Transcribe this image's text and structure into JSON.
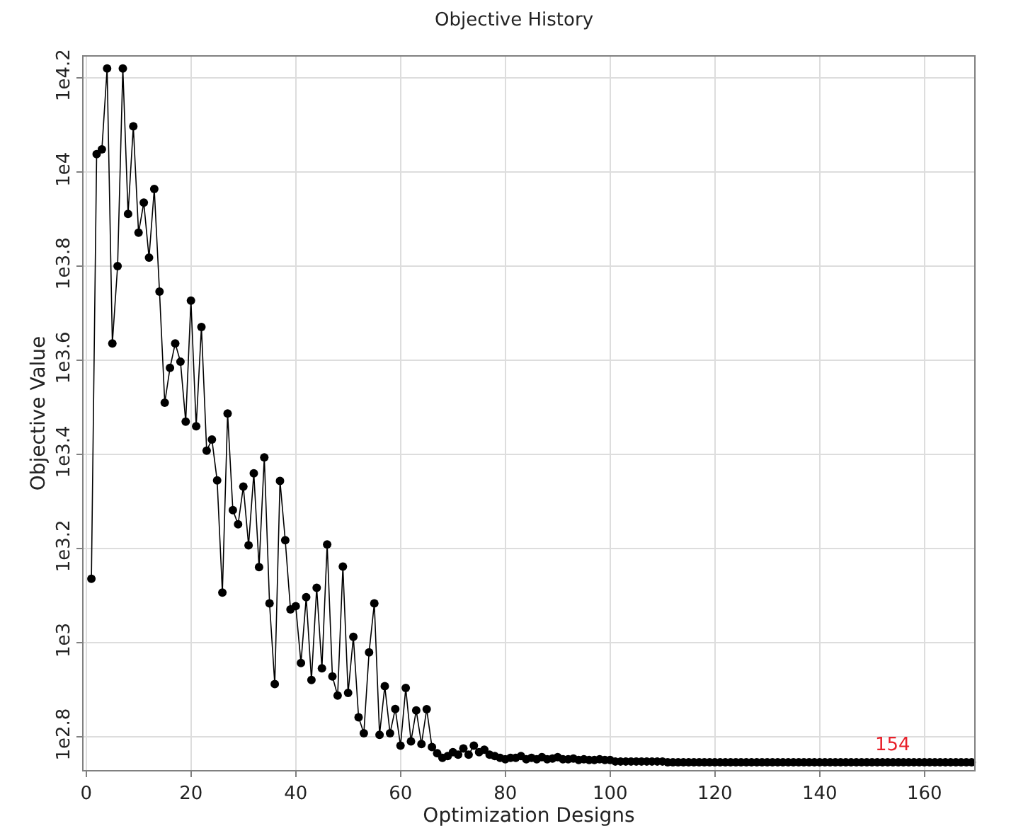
{
  "chart_data": {
    "type": "line",
    "title": "Objective History",
    "xlabel": "Optimization Designs",
    "ylabel": "Objective Value",
    "x": [
      1,
      2,
      3,
      4,
      5,
      6,
      7,
      8,
      9,
      10,
      11,
      12,
      13,
      14,
      15,
      16,
      17,
      18,
      19,
      20,
      21,
      22,
      23,
      24,
      25,
      26,
      27,
      28,
      29,
      30,
      31,
      32,
      33,
      34,
      35,
      36,
      37,
      38,
      39,
      40,
      41,
      42,
      43,
      44,
      45,
      46,
      47,
      48,
      49,
      50,
      51,
      52,
      53,
      54,
      55,
      56,
      57,
      58,
      59,
      60,
      61,
      62,
      63,
      64,
      65,
      66,
      67,
      68,
      69,
      70,
      71,
      72,
      73,
      74,
      75,
      76,
      77,
      78,
      79,
      80,
      81,
      82,
      83,
      84,
      85,
      86,
      87,
      88,
      89,
      90,
      91,
      92,
      93,
      94,
      95,
      96,
      97,
      98,
      99,
      100,
      101,
      102,
      103,
      104,
      105,
      106,
      107,
      108,
      109,
      110,
      111,
      112,
      113,
      114,
      115,
      116,
      117,
      118,
      119,
      120,
      121,
      122,
      123,
      124,
      125,
      126,
      127,
      128,
      129,
      130,
      131,
      132,
      133,
      134,
      135,
      136,
      137,
      138,
      139,
      140,
      141,
      142,
      143,
      144,
      145,
      146,
      147,
      148,
      149,
      150,
      151,
      152,
      153,
      154,
      155,
      156,
      157,
      158,
      159,
      160,
      161,
      162,
      163,
      164,
      165,
      166,
      167,
      168,
      169
    ],
    "series": [
      {
        "color": "#000000",
        "values": [
          1368,
          10914,
          11169,
          16596,
          4325,
          6310,
          16596,
          8147,
          12503,
          7430,
          8610,
          6577,
          9204,
          5572,
          3236,
          3837,
          4325,
          3954,
          2951,
          5333,
          2884,
          4688,
          2559,
          2704,
          2213,
          1279,
          3069,
          1914,
          1786,
          2148,
          1611,
          2291,
          1449,
          2477,
          1213,
          818,
          2208,
          1652,
          1178,
          1197,
          906,
          1250,
          834,
          1309,
          883,
          1618,
          849,
          773,
          1452,
          783,
          1030,
          695,
          643,
          955,
          1213,
          638,
          809,
          643,
          724,
          605,
          802,
          618,
          719,
          610,
          723,
          601,
          583,
          570,
          575,
          586,
          579,
          597,
          579,
          605,
          586,
          593,
          579,
          575,
          570,
          566,
          570,
          570,
          575,
          566,
          570,
          566,
          572,
          566,
          568,
          572,
          566,
          566,
          568,
          564,
          566,
          564,
          564,
          566,
          564,
          564,
          560,
          560,
          560,
          560,
          560,
          560,
          560,
          560,
          560,
          560,
          558,
          558,
          558,
          558,
          558,
          558,
          558,
          558,
          558,
          558,
          558,
          558,
          558,
          558,
          558,
          558,
          558,
          558,
          558,
          558,
          558,
          558,
          558,
          558,
          558,
          558,
          558,
          558,
          558,
          558,
          558,
          558,
          558,
          558,
          558,
          558,
          558,
          558,
          558,
          558,
          558,
          558,
          558,
          558,
          558,
          558,
          558,
          558,
          558,
          558,
          558,
          558,
          558,
          558,
          558,
          558,
          558,
          558,
          558
        ]
      }
    ],
    "log": "y",
    "xlim": [
      -0.5,
      169.5
    ],
    "xticks": [
      0,
      20,
      40,
      60,
      80,
      100,
      120,
      140,
      160
    ],
    "ylim": [
      537,
      17580
    ],
    "yticks": [
      {
        "value": 631,
        "label": "1e2.8"
      },
      {
        "value": 1000,
        "label": "1e3"
      },
      {
        "value": 1585,
        "label": "1e3.2"
      },
      {
        "value": 2512,
        "label": "1e3.4"
      },
      {
        "value": 3981,
        "label": "1e3.6"
      },
      {
        "value": 6310,
        "label": "1e3.8"
      },
      {
        "value": 10000,
        "label": "1e4"
      },
      {
        "value": 15849,
        "label": "1e4.2"
      }
    ],
    "grid": true,
    "marker": "circle",
    "line_style": "solid",
    "annotations": [
      {
        "text": "154",
        "x": 154,
        "y": 558
      }
    ]
  }
}
